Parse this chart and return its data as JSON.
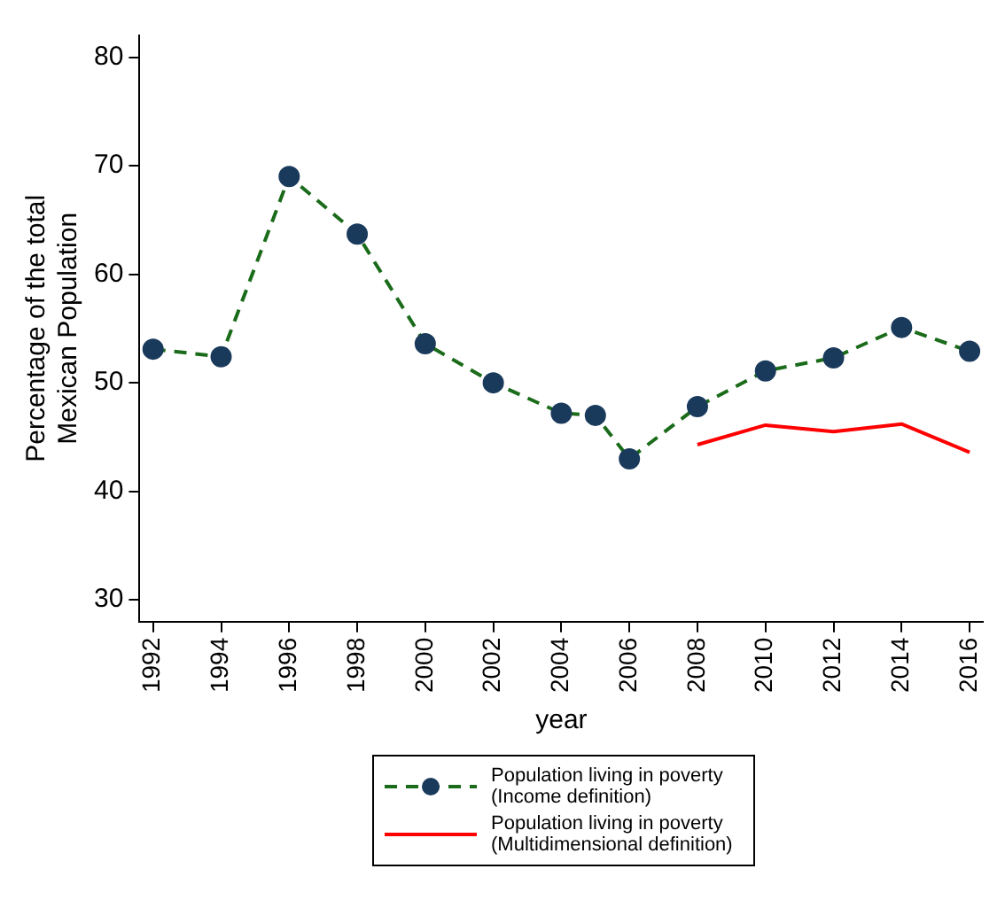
{
  "chart_data": {
    "type": "line",
    "xlabel": "year",
    "ylabel": "Percentage of the total Mexican Population",
    "xlim": [
      1991.6,
      2016.4
    ],
    "xticks": [
      1992,
      1994,
      1996,
      1998,
      2000,
      2002,
      2004,
      2006,
      2008,
      2010,
      2012,
      2014,
      2016
    ],
    "ylim": [
      28,
      82
    ],
    "yticks": [
      30,
      40,
      50,
      60,
      70,
      80
    ],
    "grid": false,
    "legend": "bottom",
    "series": [
      {
        "name": "Population living in poverty (Income definition)",
        "color": "#1a6b1a",
        "marker": "circle",
        "line_style": "dashed",
        "x": [
          1992,
          1994,
          1996,
          1998,
          2000,
          2002,
          2004,
          2005,
          2006,
          2008,
          2010,
          2012,
          2014,
          2016
        ],
        "values": [
          53.1,
          52.4,
          69,
          63.7,
          53.6,
          50,
          47.2,
          47,
          43,
          47.8,
          51.1,
          52.3,
          55.1,
          52.9
        ]
      },
      {
        "name": "Population living in poverty (Multidimensional definition)",
        "color": "#ff0000",
        "marker": "none",
        "line_style": "solid",
        "x": [
          2008,
          2010,
          2012,
          2014,
          2016
        ],
        "values": [
          44.3,
          46.1,
          45.5,
          46.2,
          43.6
        ]
      }
    ]
  }
}
